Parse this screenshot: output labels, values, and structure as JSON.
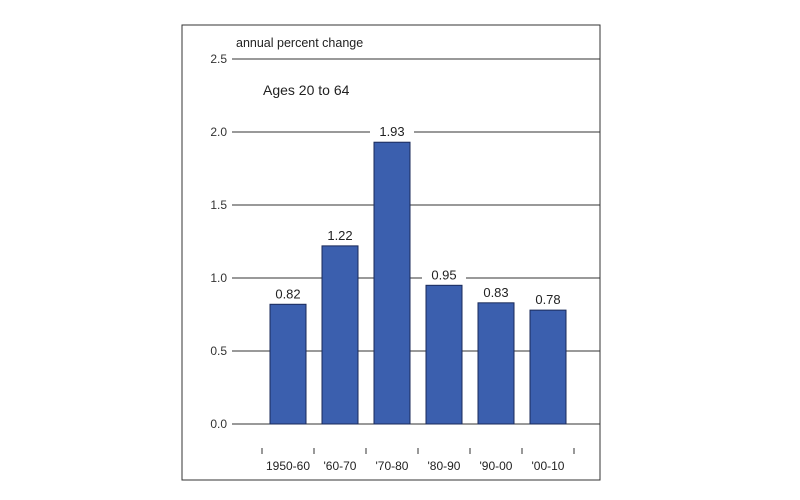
{
  "chart_data": {
    "type": "bar",
    "ylabel": "annual percent change",
    "subtitle": "Ages 20 to 64",
    "categories": [
      "1950-60",
      "'60-70",
      "'70-80",
      "'80-90",
      "'90-00",
      "'00-10"
    ],
    "values": [
      0.82,
      1.22,
      1.93,
      0.95,
      0.83,
      0.78
    ],
    "data_labels": [
      "0.82",
      "1.22",
      "1.93",
      "0.95",
      "0.83",
      "0.78"
    ],
    "ylim": [
      0,
      2.5
    ],
    "yticks": [
      0.0,
      0.5,
      1.0,
      1.5,
      2.0,
      2.5
    ],
    "ytick_labels": [
      "0.0",
      "0.5",
      "1.0",
      "1.5",
      "2.0",
      "2.5"
    ],
    "grid": true,
    "bar_color": "#3b5fae"
  }
}
